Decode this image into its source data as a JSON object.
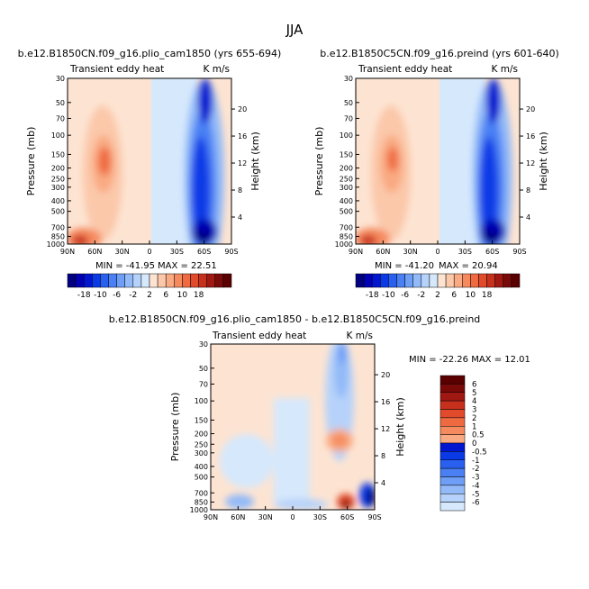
{
  "figure_title": "JJA",
  "colors": {
    "neg": [
      "#000080",
      "#0000b4",
      "#0016d0",
      "#0a3ae6",
      "#2a60f0",
      "#4a80f4",
      "#6e9ef6",
      "#92baf8",
      "#b6d2fa",
      "#d6e8fc"
    ],
    "pos": [
      "#fde4d2",
      "#fbc8aa",
      "#f9aa82",
      "#f58a5e",
      "#ef6a40",
      "#e24a2c",
      "#c8301e",
      "#a01812",
      "#7a0a08",
      "#5a0000"
    ]
  },
  "chart_data": [
    {
      "type": "heatmap",
      "title": "b.e12.B1850CN.f09_g16.plio_cam1850 (yrs 655-694)",
      "left_label": "Transient eddy heat",
      "right_label": "K m/s",
      "ylabel": "Pressure (mb)",
      "ylabel_right": "Height (km)",
      "x_ticks": [
        "90N",
        "60N",
        "30N",
        "0",
        "30S",
        "60S",
        "90S"
      ],
      "y_ticks": [
        "30",
        "50",
        "70",
        "100",
        "150",
        "200",
        "250",
        "300",
        "400",
        "500",
        "700",
        "850",
        "1000"
      ],
      "height_ticks": [
        "4",
        "8",
        "12",
        "16",
        "20"
      ],
      "min_label": "MIN = -41.95",
      "max_label": "MAX = 22.51",
      "colorbar_labels": [
        "-18",
        "-10",
        "-6",
        "-2",
        "2",
        "6",
        "10",
        "18"
      ]
    },
    {
      "type": "heatmap",
      "title": "b.e12.B1850C5CN.f09_g16.preind (yrs 601-640)",
      "left_label": "Transient eddy heat",
      "right_label": "K m/s",
      "ylabel": "Pressure (mb)",
      "ylabel_right": "Height (km)",
      "x_ticks": [
        "90N",
        "60N",
        "30N",
        "0",
        "30S",
        "60S",
        "90S"
      ],
      "y_ticks": [
        "30",
        "50",
        "70",
        "100",
        "150",
        "200",
        "250",
        "300",
        "400",
        "500",
        "700",
        "850",
        "1000"
      ],
      "height_ticks": [
        "4",
        "8",
        "12",
        "16",
        "20"
      ],
      "min_label": "MIN = -41.20",
      "max_label": "MAX = 20.94",
      "colorbar_labels": [
        "-18",
        "-10",
        "-6",
        "-2",
        "2",
        "6",
        "10",
        "18"
      ]
    },
    {
      "type": "heatmap",
      "title": "b.e12.B1850CN.f09_g16.plio_cam1850 - b.e12.B1850C5CN.f09_g16.preind",
      "left_label": "Transient eddy heat",
      "right_label": "K m/s",
      "ylabel": "Pressure (mb)",
      "ylabel_right": "Height (km)",
      "x_ticks": [
        "90N",
        "60N",
        "30N",
        "0",
        "30S",
        "60S",
        "90S"
      ],
      "y_ticks": [
        "30",
        "50",
        "70",
        "100",
        "150",
        "200",
        "250",
        "300",
        "400",
        "500",
        "700",
        "850",
        "1000"
      ],
      "height_ticks": [
        "4",
        "8",
        "12",
        "16",
        "20"
      ],
      "minmax_label": "MIN = -22.26   MAX = 12.01",
      "colorbar_labels": [
        "6",
        "5",
        "4",
        "3",
        "2",
        "1",
        "0.5",
        "0",
        "-0.5",
        "-1",
        "-2",
        "-3",
        "-4",
        "-5",
        "-6"
      ]
    }
  ]
}
